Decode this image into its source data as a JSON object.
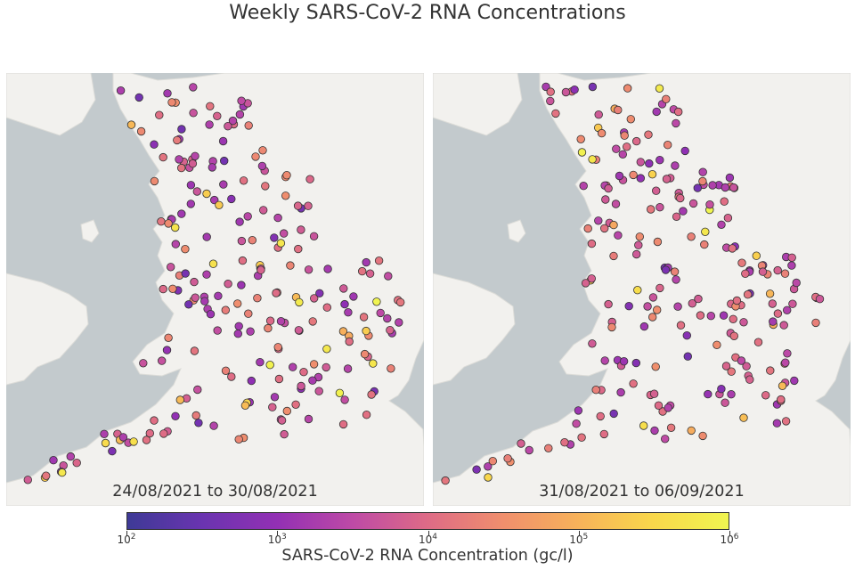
{
  "title": "Weekly SARS-CoV-2 RNA Concentrations",
  "panels": [
    {
      "date_range": "24/08/2021 to 30/08/2021"
    },
    {
      "date_range": "31/08/2021 to 06/09/2021"
    }
  ],
  "colorbar": {
    "label": "SARS-CoV-2 RNA Concentration (gc/l)",
    "ticks": [
      {
        "base": "10",
        "exp": "2"
      },
      {
        "base": "10",
        "exp": "3"
      },
      {
        "base": "10",
        "exp": "4"
      },
      {
        "base": "10",
        "exp": "5"
      },
      {
        "base": "10",
        "exp": "6"
      }
    ],
    "log_range": [
      2,
      6
    ],
    "colors": [
      "#3e3a96",
      "#6a34b0",
      "#9330b4",
      "#be4aa6",
      "#de6b86",
      "#f08f6d",
      "#f7b25a",
      "#f9d84b",
      "#f0f550"
    ]
  },
  "colors": {
    "sea": "#c3cacd",
    "land": "#f2f1ee",
    "point_outline": "#333333"
  }
}
